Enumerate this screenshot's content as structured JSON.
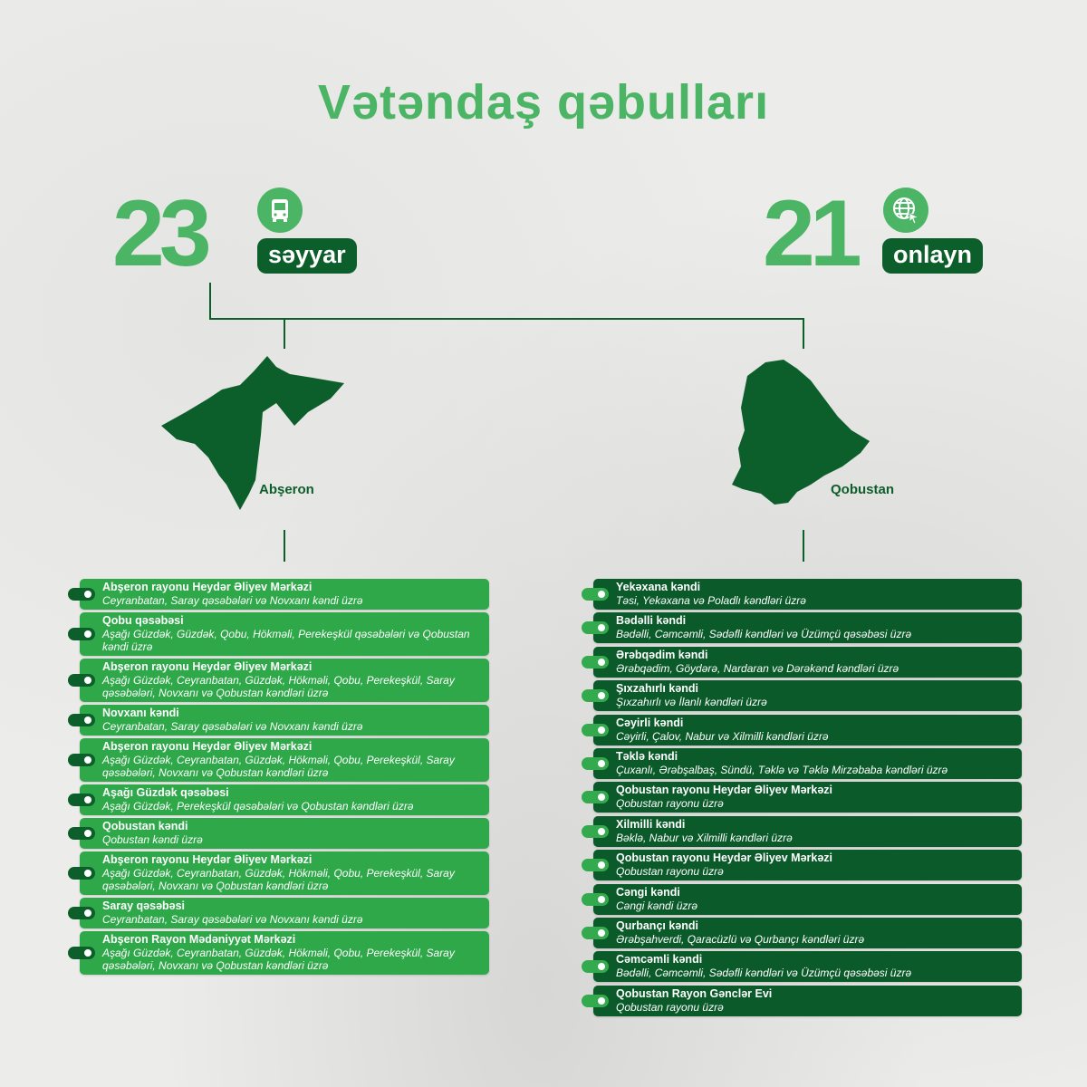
{
  "title": "Vətəndaş qəbulları",
  "colors": {
    "accent": "#4cb565",
    "dark": "#0c5e2a",
    "left_item": "#2fa84a",
    "right_item": "#0b5a2a"
  },
  "mobile": {
    "count": "23",
    "label": "səyyar",
    "icon": "bus-icon"
  },
  "online": {
    "count": "21",
    "label": "onlayn",
    "icon": "globe-cursor-icon"
  },
  "regions": {
    "left": "Abşeron",
    "right": "Qobustan"
  },
  "left_items": [
    {
      "title": "Abşeron rayonu Heydər Əliyev Mərkəzi",
      "sub": "Ceyranbatan, Saray qəsəbələri və Novxanı kəndi üzrə"
    },
    {
      "title": "Qobu qəsəbəsi",
      "sub": "Aşağı Güzdək, Güzdək, Qobu, Hökməli, Perekeşkül qəsəbələri və Qobustan kəndi üzrə"
    },
    {
      "title": "Abşeron rayonu Heydər Əliyev Mərkəzi",
      "sub": "Aşağı Güzdək, Ceyranbatan, Güzdək, Hökməli, Qobu, Perekeşkül, Saray qəsəbələri, Novxanı və Qobustan kəndləri üzrə"
    },
    {
      "title": "Novxanı kəndi",
      "sub": "Ceyranbatan, Saray qəsəbələri və Novxanı kəndi üzrə"
    },
    {
      "title": "Abşeron rayonu Heydər Əliyev Mərkəzi",
      "sub": "Aşağı Güzdək, Ceyranbatan, Güzdək, Hökməli, Qobu, Perekeşkül, Saray qəsəbələri, Novxanı və Qobustan kəndləri üzrə"
    },
    {
      "title": "Aşağı Güzdək qəsəbəsi",
      "sub": "Aşağı Güzdək, Perekeşkül qəsəbələri və Qobustan kəndləri üzrə"
    },
    {
      "title": "Qobustan kəndi",
      "sub": "Qobustan kəndi üzrə"
    },
    {
      "title": "Abşeron rayonu Heydər Əliyev Mərkəzi",
      "sub": "Aşağı Güzdək, Ceyranbatan, Güzdək, Hökməli, Qobu, Perekeşkül, Saray qəsəbələri, Novxanı və Qobustan kəndləri üzrə"
    },
    {
      "title": "Saray qəsəbəsi",
      "sub": "Ceyranbatan, Saray qəsəbələri və Novxanı kəndi üzrə"
    },
    {
      "title": "Abşeron Rayon Mədəniyyət Mərkəzi",
      "sub": "Aşağı Güzdək, Ceyranbatan, Güzdək, Hökməli, Qobu, Perekeşkül, Saray qəsəbələri, Novxanı və Qobustan kəndləri üzrə"
    }
  ],
  "right_items": [
    {
      "title": "Yekəxana kəndi",
      "sub": "Təsi, Yekəxana və Poladlı kəndləri üzrə"
    },
    {
      "title": "Bədəlli kəndi",
      "sub": "Bədəlli, Cəmcəmli, Sədəfli kəndləri və Üzümçü qəsəbəsi üzrə"
    },
    {
      "title": "Ərəbqədim kəndi",
      "sub": "Ərəbqədim, Göydərə, Nardaran və Dərəkənd kəndləri üzrə"
    },
    {
      "title": "Şıxzahırlı kəndi",
      "sub": "Şıxzahırlı və İlanlı kəndləri üzrə"
    },
    {
      "title": "Cəyirli kəndi",
      "sub": "Cəyirli, Çalov, Nabur və Xilmilli kəndləri üzrə"
    },
    {
      "title": "Təklə kəndi",
      "sub": "Çuxanlı, Ərəbşalbaş, Sündü, Təklə və Təklə Mirzəbaba kəndləri üzrə"
    },
    {
      "title": "Qobustan rayonu Heydər Əliyev Mərkəzi",
      "sub": "Qobustan rayonu üzrə"
    },
    {
      "title": "Xilmilli kəndi",
      "sub": "Bəklə, Nabur və Xilmilli kəndləri üzrə"
    },
    {
      "title": "Qobustan rayonu Heydər Əliyev Mərkəzi",
      "sub": "Qobustan rayonu üzrə"
    },
    {
      "title": "Cəngi kəndi",
      "sub": "Cəngi kəndi üzrə"
    },
    {
      "title": "Qurbançı kəndi",
      "sub": "Ərəbşahverdi, Qaracüzlü və Qurbançı kəndləri üzrə"
    },
    {
      "title": "Cəmcəmli kəndi",
      "sub": "Bədəlli, Cəmcəmli, Sədəfli kəndləri və Üzümçü qəsəbəsi üzrə"
    },
    {
      "title": "Qobustan Rayon Gənclər Evi",
      "sub": "Qobustan rayonu üzrə"
    }
  ]
}
